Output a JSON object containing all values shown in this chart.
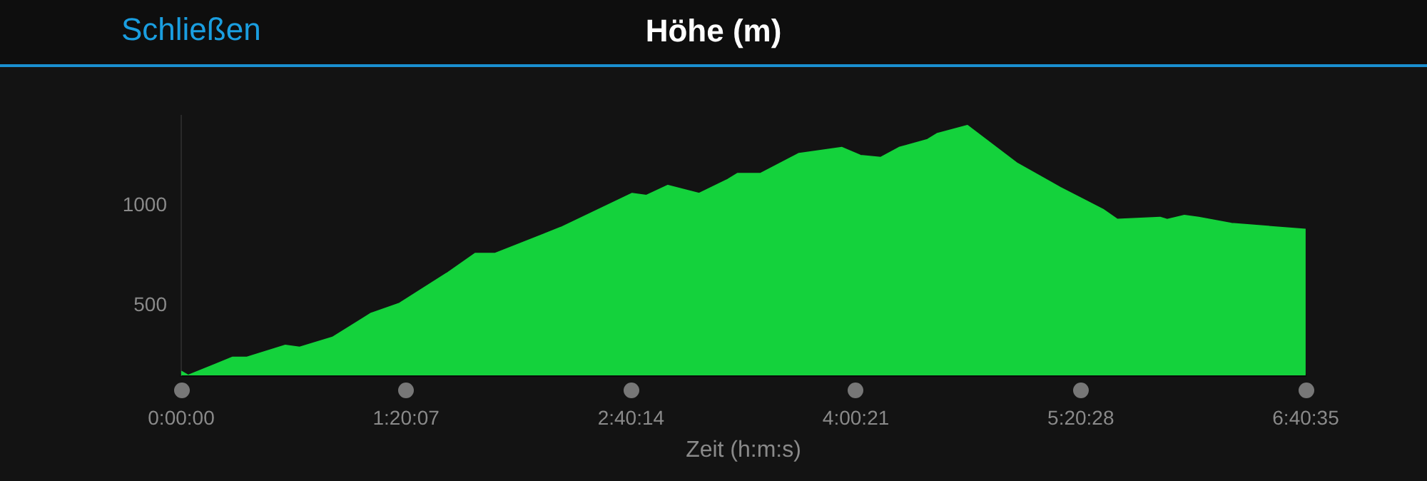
{
  "chart_data": {
    "type": "area",
    "title": "Höhe (m)",
    "annotations": [
      "Schließen"
    ],
    "xlabel": "Zeit (h:m:s)",
    "x": [
      0,
      0.042,
      0.305,
      0.39,
      0.618,
      0.703,
      0.898,
      1.127,
      1.296,
      1.576,
      1.745,
      1.864,
      2.254,
      2.677,
      2.762,
      2.889,
      3.075,
      3.245,
      3.304,
      3.44,
      3.668,
      3.923,
      4.033,
      4.152,
      4.262,
      4.431,
      4.49,
      4.668,
      4.965,
      5.219,
      5.473,
      5.558,
      5.812,
      5.854,
      5.956,
      6.041,
      6.236,
      6.676
    ],
    "series": [
      {
        "color": "#14d23c",
        "values": [
          170,
          150,
          240,
          240,
          300,
          290,
          340,
          460,
          510,
          660,
          760,
          760,
          890,
          1060,
          1050,
          1100,
          1060,
          1130,
          1160,
          1160,
          1260,
          1290,
          1250,
          1240,
          1290,
          1330,
          1360,
          1400,
          1210,
          1090,
          980,
          930,
          940,
          930,
          950,
          940,
          910,
          880
        ]
      }
    ],
    "xlim": [
      0,
      6.6764
    ],
    "xticks": [
      {
        "value": 0,
        "label": "0:00:00"
      },
      {
        "value": 1.3353,
        "label": "1:20:07"
      },
      {
        "value": 2.6706,
        "label": "2:40:14"
      },
      {
        "value": 4.0058,
        "label": "4:00:21"
      },
      {
        "value": 5.3411,
        "label": "5:20:28"
      },
      {
        "value": 6.6764,
        "label": "6:40:35"
      }
    ],
    "ylim": [
      150,
      1450
    ],
    "yticks": [
      500,
      1000
    ],
    "grid": false,
    "legend": false
  }
}
